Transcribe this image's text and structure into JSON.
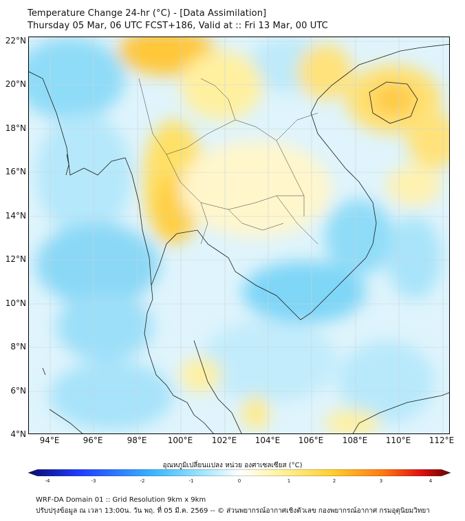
{
  "header": {
    "title": "Temperature Change 24-hr (°C) - [Data Assimilation]",
    "subtitle": "Thursday 05 Mar, 06 UTC FCST+186, Valid at :: Fri 13 Mar, 00 UTC"
  },
  "map": {
    "lat_labels": [
      "22°N",
      "20°N",
      "18°N",
      "16°N",
      "14°N",
      "12°N",
      "10°N",
      "8°N",
      "6°N",
      "4°N"
    ],
    "lon_labels": [
      "94°E",
      "96°E",
      "98°E",
      "100°E",
      "102°E",
      "104°E",
      "106°E",
      "108°E",
      "110°E",
      "112°E"
    ]
  },
  "colorbar": {
    "label": "อุณหภูมิเปลี่ยนแปลง หน่วย องศาเซลเซียส (°C)",
    "ticks": [
      "-4",
      "-3",
      "-2",
      "-1",
      "0",
      "1",
      "2",
      "3",
      "4"
    ]
  },
  "footer": {
    "line1": "WRF-DA Domain 01 :: Grid Resolution 9km x 9km",
    "line2": "ปรับปรุงข้อมูล ณ เวลา 13:00น. วัน พฤ. ที่ 05 มี.ค. 2569 -- © ส่วนพยากรณ์อากาศเชิงตัวเลข กองพยากรณ์อากาศ กรมอุตุนิยมวิทยา"
  },
  "colors": {
    "warm": "#ffd84a",
    "cool": "#7fd9ff",
    "neutral": "#ffffff",
    "coast": "#1a1a1a",
    "grid": "#c9d4dc"
  }
}
